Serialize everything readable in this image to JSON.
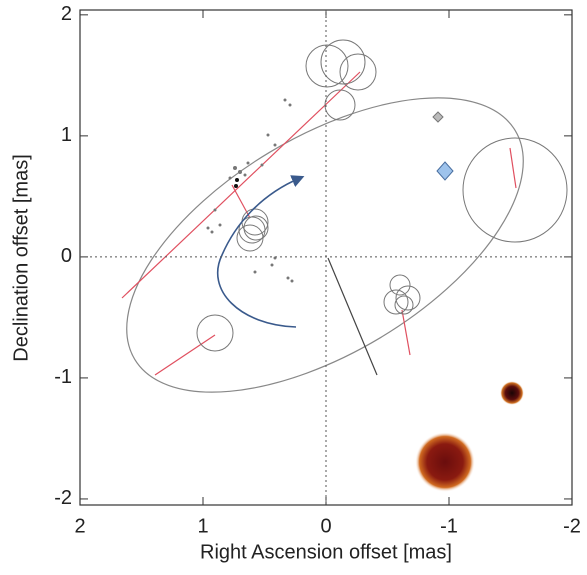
{
  "chart_data": {
    "type": "scatter",
    "x_label": "Right Ascension offset [mas]",
    "y_label": "Declination offset [mas]",
    "xlim": [
      2,
      -2
    ],
    "ylim": [
      -2.05,
      2.04
    ],
    "xticks": [
      2,
      1,
      0,
      -1,
      -2
    ],
    "yticks": [
      -2,
      -1,
      0,
      1,
      2
    ],
    "zero_lines": true
  }
}
